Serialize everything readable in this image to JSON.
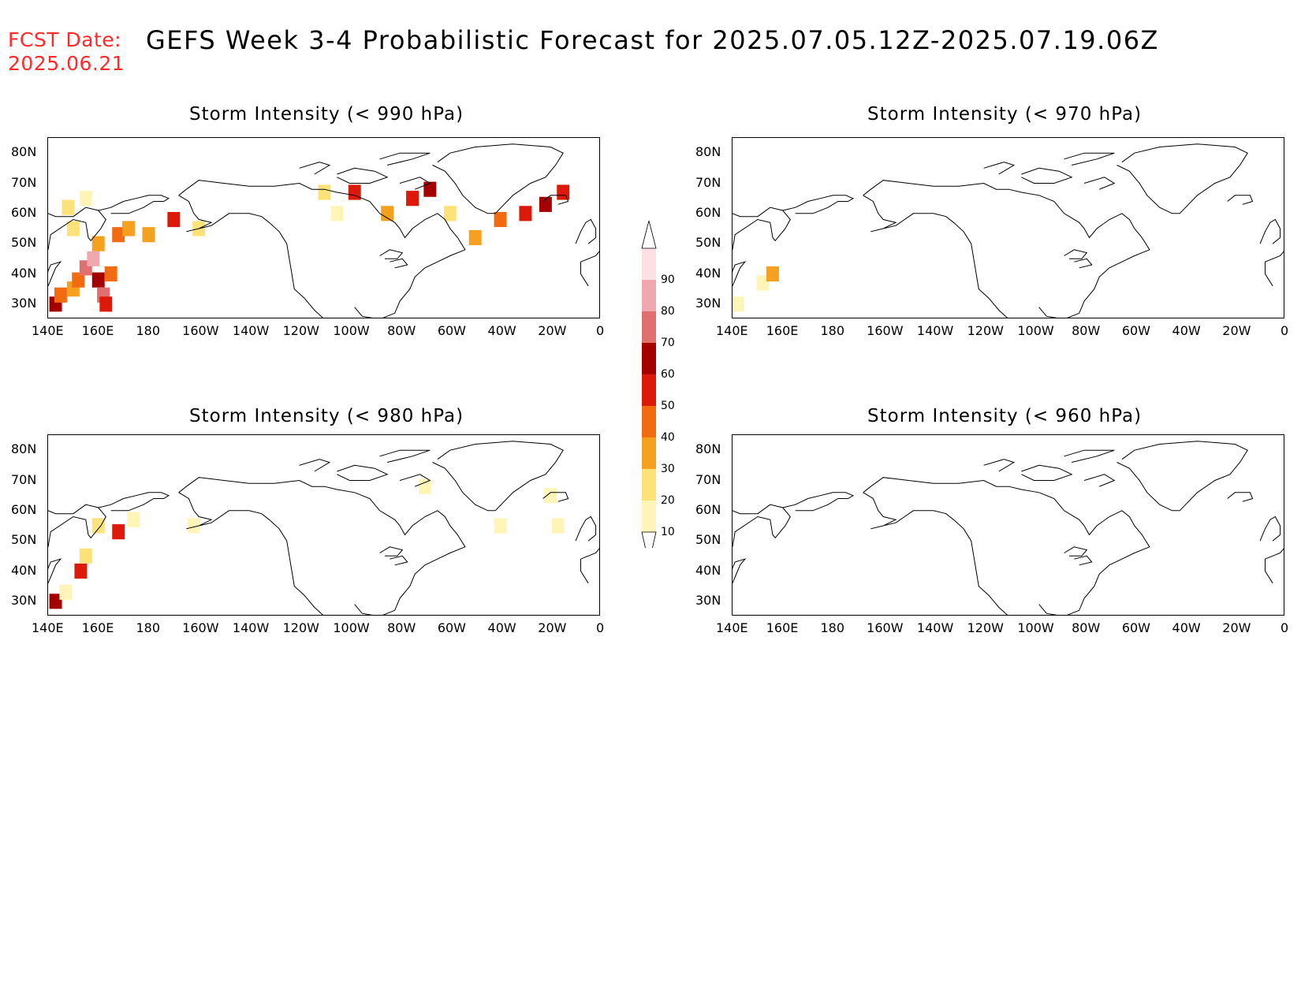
{
  "header": {
    "fcst_label": "FCST Date:",
    "fcst_date": "2025.06.21",
    "title": "GEFS Week 3-4 Probabilistic Forecast for 2025.07.05.12Z-2025.07.19.06Z"
  },
  "panels": [
    {
      "title": "Storm Intensity (< 990 hPa)"
    },
    {
      "title": "Storm Intensity (< 970 hPa)"
    },
    {
      "title": "Storm Intensity (< 980 hPa)"
    },
    {
      "title": "Storm Intensity (< 960 hPa)"
    }
  ],
  "axes": {
    "lat_labels": [
      "80N",
      "70N",
      "60N",
      "50N",
      "40N",
      "30N"
    ],
    "lon_labels": [
      "140E",
      "160E",
      "180",
      "160W",
      "140W",
      "120W",
      "100W",
      "80W",
      "60W",
      "40W",
      "20W",
      "0"
    ]
  },
  "legend": {
    "levels": [
      "10",
      "20",
      "30",
      "40",
      "50",
      "60",
      "70",
      "80",
      "90"
    ],
    "colors": [
      "#fff5b8",
      "#fde27a",
      "#f6a020",
      "#f36b10",
      "#dd1a0a",
      "#a50000",
      "#e07070",
      "#f0a8b0",
      "#fde0e4"
    ]
  },
  "map_data": {
    "description_free": true,
    "lat_range": [
      25,
      85
    ],
    "lon_range_deg_east": [
      140,
      360
    ],
    "panel_990": [
      {
        "lon": 143,
        "lat": 30,
        "p": 60
      },
      {
        "lon": 145,
        "lat": 33,
        "p": 40
      },
      {
        "lon": 150,
        "lat": 35,
        "p": 30
      },
      {
        "lon": 152,
        "lat": 38,
        "p": 40
      },
      {
        "lon": 155,
        "lat": 42,
        "p": 70
      },
      {
        "lon": 158,
        "lat": 45,
        "p": 80
      },
      {
        "lon": 160,
        "lat": 38,
        "p": 60
      },
      {
        "lon": 162,
        "lat": 33,
        "p": 70
      },
      {
        "lon": 163,
        "lat": 30,
        "p": 50
      },
      {
        "lon": 165,
        "lat": 40,
        "p": 40
      },
      {
        "lon": 160,
        "lat": 50,
        "p": 30
      },
      {
        "lon": 150,
        "lat": 55,
        "p": 20
      },
      {
        "lon": 148,
        "lat": 62,
        "p": 20
      },
      {
        "lon": 155,
        "lat": 65,
        "p": 10
      },
      {
        "lon": 168,
        "lat": 53,
        "p": 40
      },
      {
        "lon": 172,
        "lat": 55,
        "p": 30
      },
      {
        "lon": 180,
        "lat": 53,
        "p": 30
      },
      {
        "lon": 190,
        "lat": 58,
        "p": 50
      },
      {
        "lon": 200,
        "lat": 55,
        "p": 20
      },
      {
        "lon": 250,
        "lat": 67,
        "p": 20
      },
      {
        "lon": 255,
        "lat": 60,
        "p": 10
      },
      {
        "lon": 262,
        "lat": 67,
        "p": 50
      },
      {
        "lon": 275,
        "lat": 60,
        "p": 30
      },
      {
        "lon": 285,
        "lat": 65,
        "p": 50
      },
      {
        "lon": 292,
        "lat": 68,
        "p": 60
      },
      {
        "lon": 300,
        "lat": 60,
        "p": 20
      },
      {
        "lon": 310,
        "lat": 52,
        "p": 30
      },
      {
        "lon": 320,
        "lat": 58,
        "p": 40
      },
      {
        "lon": 330,
        "lat": 60,
        "p": 50
      },
      {
        "lon": 338,
        "lat": 63,
        "p": 60
      },
      {
        "lon": 345,
        "lat": 67,
        "p": 50
      }
    ],
    "panel_970": [
      {
        "lon": 142,
        "lat": 30,
        "p": 10
      },
      {
        "lon": 152,
        "lat": 37,
        "p": 10
      },
      {
        "lon": 156,
        "lat": 40,
        "p": 30
      }
    ],
    "panel_980": [
      {
        "lon": 143,
        "lat": 30,
        "p": 60
      },
      {
        "lon": 147,
        "lat": 33,
        "p": 10
      },
      {
        "lon": 153,
        "lat": 40,
        "p": 50
      },
      {
        "lon": 155,
        "lat": 45,
        "p": 20
      },
      {
        "lon": 160,
        "lat": 55,
        "p": 20
      },
      {
        "lon": 168,
        "lat": 53,
        "p": 50
      },
      {
        "lon": 174,
        "lat": 57,
        "p": 10
      },
      {
        "lon": 198,
        "lat": 55,
        "p": 10
      },
      {
        "lon": 290,
        "lat": 68,
        "p": 10
      },
      {
        "lon": 320,
        "lat": 55,
        "p": 10
      },
      {
        "lon": 340,
        "lat": 65,
        "p": 10
      },
      {
        "lon": 343,
        "lat": 55,
        "p": 10
      }
    ],
    "panel_960": []
  }
}
